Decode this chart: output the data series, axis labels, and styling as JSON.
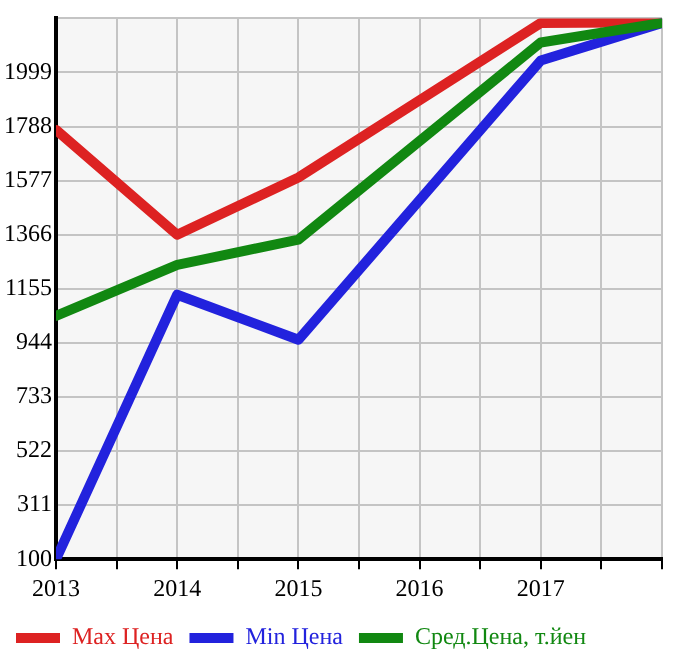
{
  "chart_data": {
    "type": "line",
    "x": [
      2013,
      2014,
      2015,
      2017,
      2018
    ],
    "series": [
      {
        "name": "Max Цена",
        "color": "#dd2222",
        "values": [
          1775,
          1366,
          1589,
          2192,
          2195
        ]
      },
      {
        "name": "Min Цена",
        "color": "#2222dd",
        "values": [
          100,
          1132,
          956,
          2046,
          2192
        ]
      },
      {
        "name": "Сред.Цена, т.йен",
        "color": "#118811",
        "values": [
          1049,
          1248,
          1347,
          2116,
          2192
        ]
      }
    ],
    "xlim": [
      2013,
      2018
    ],
    "xticks": [
      2013,
      {
        "value": 2013.5,
        "label": null
      },
      2014,
      {
        "value": 2014.5,
        "label": null
      },
      2015,
      {
        "value": 2015.5,
        "label": null
      },
      2016,
      {
        "value": 2016.5,
        "label": null
      },
      2017,
      {
        "value": 2017.5,
        "label": null
      },
      {
        "value": 2018,
        "label": null
      }
    ],
    "ylim": [
      100,
      2210
    ],
    "yticks": [
      100,
      311,
      522,
      733,
      944,
      1155,
      1366,
      1577,
      1788,
      1999,
      {
        "value": 2210,
        "label": null
      }
    ],
    "grid": true,
    "legend": "bottom",
    "marker": "none",
    "line_style": "solid"
  }
}
